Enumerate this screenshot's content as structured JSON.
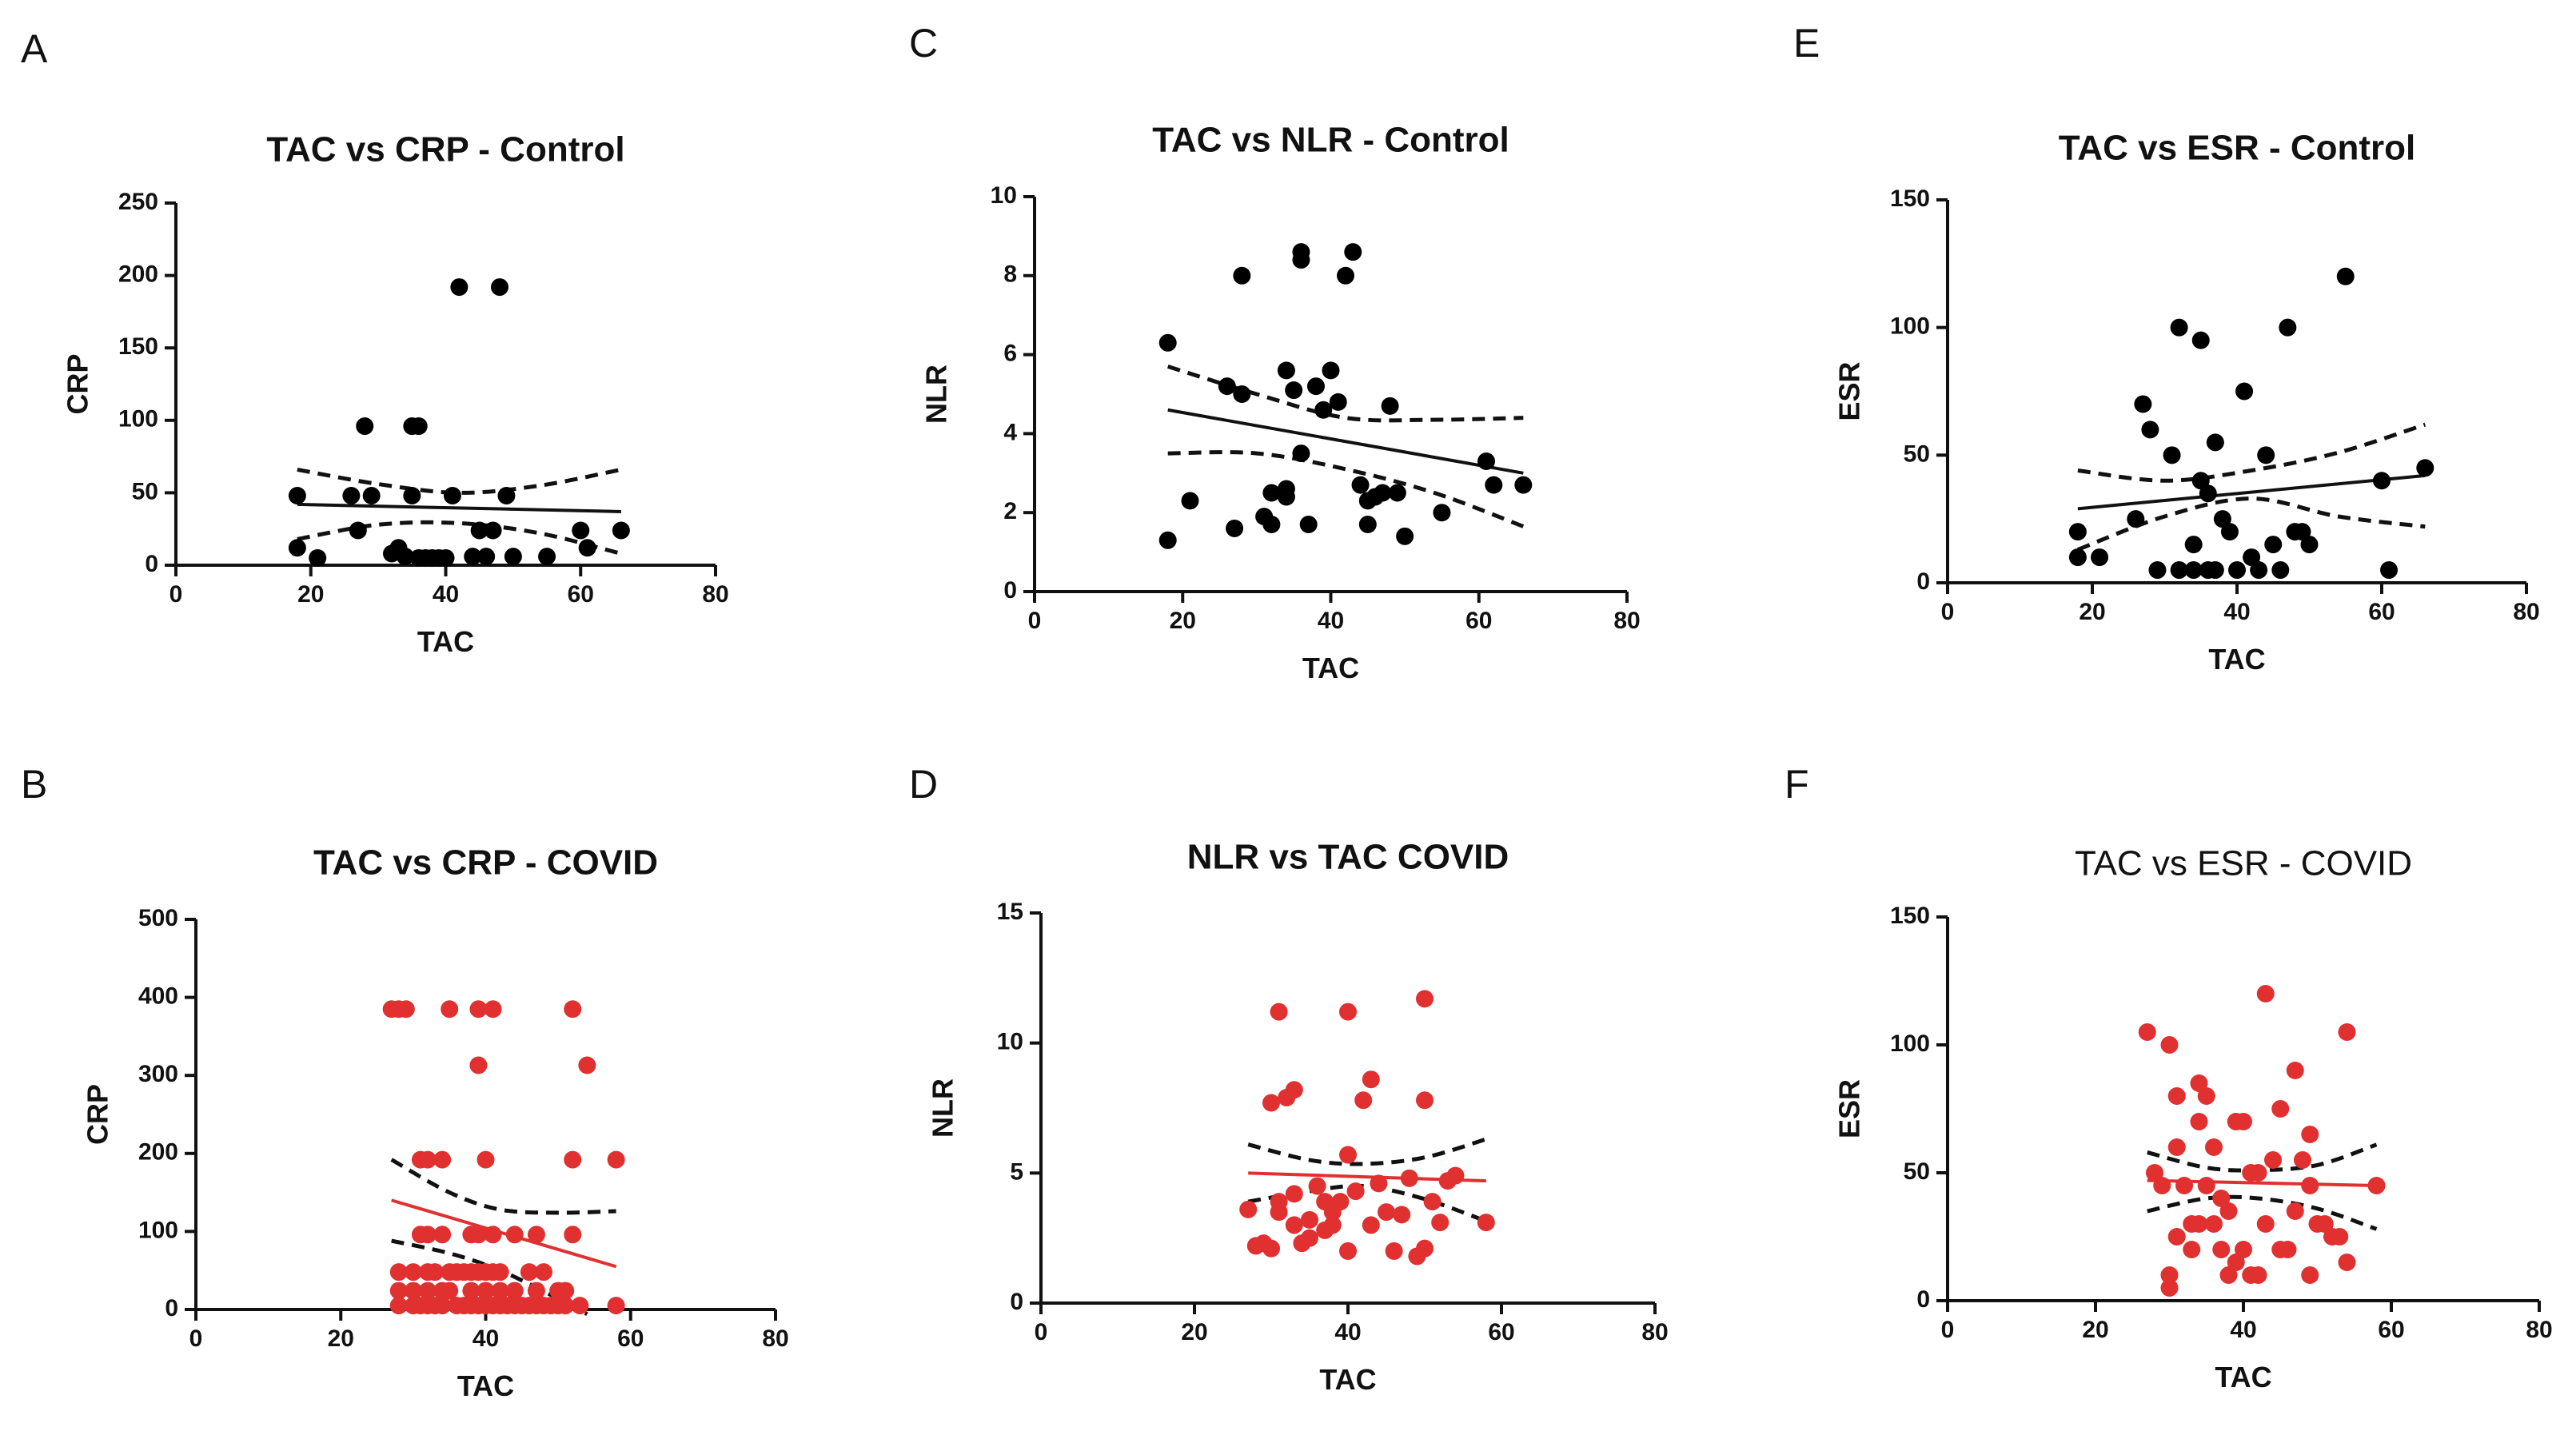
{
  "chart_data": [
    {
      "panel": "A",
      "type": "scatter",
      "title": "TAC vs CRP - Control",
      "title_bold": true,
      "xlabel": "TAC",
      "ylabel": "CRP",
      "xlim": [
        0,
        80
      ],
      "ylim": [
        0,
        250
      ],
      "xticks": [
        0,
        20,
        40,
        60,
        80
      ],
      "yticks": [
        0,
        50,
        100,
        150,
        200,
        250
      ],
      "color": "#000000",
      "points": [
        [
          18,
          48
        ],
        [
          18,
          12
        ],
        [
          21,
          5
        ],
        [
          26,
          48
        ],
        [
          27,
          24
        ],
        [
          28,
          96
        ],
        [
          29,
          48
        ],
        [
          32,
          8
        ],
        [
          33,
          12
        ],
        [
          34,
          6
        ],
        [
          35,
          48
        ],
        [
          35,
          96
        ],
        [
          36,
          96
        ],
        [
          36,
          5
        ],
        [
          37,
          5
        ],
        [
          38,
          5
        ],
        [
          39,
          5
        ],
        [
          40,
          5
        ],
        [
          41,
          48
        ],
        [
          42,
          192
        ],
        [
          44,
          6
        ],
        [
          45,
          24
        ],
        [
          46,
          6
        ],
        [
          47,
          24
        ],
        [
          48,
          192
        ],
        [
          49,
          48
        ],
        [
          50,
          6
        ],
        [
          55,
          6
        ],
        [
          60,
          24
        ],
        [
          61,
          12
        ],
        [
          66,
          24
        ]
      ],
      "fit": [
        [
          18,
          42
        ],
        [
          66,
          37
        ]
      ],
      "ci_upper": [
        [
          18,
          66
        ],
        [
          30,
          56
        ],
        [
          42,
          50
        ],
        [
          54,
          55
        ],
        [
          66,
          66
        ]
      ],
      "ci_lower": [
        [
          18,
          18
        ],
        [
          30,
          28
        ],
        [
          42,
          29
        ],
        [
          54,
          22
        ],
        [
          66,
          8
        ]
      ]
    },
    {
      "panel": "B",
      "type": "scatter",
      "title": "TAC vs CRP - COVID",
      "title_bold": true,
      "xlabel": "TAC",
      "ylabel": "CRP",
      "xlim": [
        0,
        80
      ],
      "ylim": [
        0,
        500
      ],
      "xticks": [
        0,
        20,
        40,
        60,
        80
      ],
      "yticks": [
        0,
        100,
        200,
        300,
        400,
        500
      ],
      "color": "#E03030",
      "points": [
        [
          27,
          385
        ],
        [
          28,
          385
        ],
        [
          29,
          385
        ],
        [
          35,
          385
        ],
        [
          39,
          385
        ],
        [
          41,
          385
        ],
        [
          52,
          385
        ],
        [
          54,
          313
        ],
        [
          39,
          313
        ],
        [
          31,
          192
        ],
        [
          32,
          192
        ],
        [
          34,
          192
        ],
        [
          40,
          192
        ],
        [
          52,
          192
        ],
        [
          58,
          192
        ],
        [
          31,
          96
        ],
        [
          32,
          96
        ],
        [
          34,
          96
        ],
        [
          38,
          96
        ],
        [
          39,
          96
        ],
        [
          41,
          96
        ],
        [
          44,
          96
        ],
        [
          47,
          96
        ],
        [
          52,
          96
        ],
        [
          28,
          48
        ],
        [
          30,
          48
        ],
        [
          32,
          48
        ],
        [
          33,
          48
        ],
        [
          35,
          48
        ],
        [
          36,
          48
        ],
        [
          37,
          48
        ],
        [
          38,
          48
        ],
        [
          39,
          48
        ],
        [
          40,
          48
        ],
        [
          41,
          48
        ],
        [
          42,
          48
        ],
        [
          46,
          48
        ],
        [
          48,
          48
        ],
        [
          28,
          24
        ],
        [
          30,
          24
        ],
        [
          32,
          24
        ],
        [
          34,
          24
        ],
        [
          35,
          24
        ],
        [
          38,
          24
        ],
        [
          40,
          24
        ],
        [
          42,
          24
        ],
        [
          44,
          24
        ],
        [
          47,
          24
        ],
        [
          50,
          24
        ],
        [
          51,
          24
        ],
        [
          28,
          5
        ],
        [
          30,
          5
        ],
        [
          31,
          5
        ],
        [
          32,
          5
        ],
        [
          33,
          5
        ],
        [
          34,
          5
        ],
        [
          36,
          5
        ],
        [
          37,
          5
        ],
        [
          38,
          5
        ],
        [
          39,
          5
        ],
        [
          40,
          5
        ],
        [
          41,
          5
        ],
        [
          42,
          5
        ],
        [
          43,
          5
        ],
        [
          44,
          5
        ],
        [
          45,
          5
        ],
        [
          46,
          5
        ],
        [
          47,
          5
        ],
        [
          48,
          5
        ],
        [
          49,
          5
        ],
        [
          50,
          5
        ],
        [
          51,
          5
        ],
        [
          53,
          5
        ],
        [
          58,
          5
        ]
      ],
      "fit": [
        [
          27,
          140
        ],
        [
          58,
          55
        ]
      ],
      "ci_upper": [
        [
          27,
          192
        ],
        [
          35,
          150
        ],
        [
          42,
          128
        ],
        [
          50,
          124
        ],
        [
          58,
          126
        ]
      ],
      "ci_lower": [
        [
          27,
          88
        ],
        [
          35,
          72
        ],
        [
          42,
          50
        ],
        [
          50,
          14
        ],
        [
          54,
          -6
        ]
      ]
    },
    {
      "panel": "C",
      "type": "scatter",
      "title": "TAC vs NLR - Control",
      "title_bold": true,
      "xlabel": "TAC",
      "ylabel": "NLR",
      "xlim": [
        0,
        80
      ],
      "ylim": [
        0,
        10
      ],
      "xticks": [
        0,
        20,
        40,
        60,
        80
      ],
      "yticks": [
        0,
        2,
        4,
        6,
        8,
        10
      ],
      "color": "#000000",
      "points": [
        [
          18,
          6.3
        ],
        [
          18,
          1.3
        ],
        [
          21,
          2.3
        ],
        [
          26,
          5.2
        ],
        [
          27,
          1.6
        ],
        [
          28,
          5.0
        ],
        [
          28,
          8.0
        ],
        [
          31,
          1.9
        ],
        [
          32,
          2.5
        ],
        [
          32,
          1.7
        ],
        [
          34,
          2.6
        ],
        [
          34,
          2.4
        ],
        [
          34,
          5.6
        ],
        [
          35,
          5.1
        ],
        [
          36,
          8.6
        ],
        [
          36,
          8.4
        ],
        [
          36,
          3.5
        ],
        [
          37,
          1.7
        ],
        [
          38,
          5.2
        ],
        [
          39,
          4.6
        ],
        [
          40,
          5.6
        ],
        [
          41,
          4.8
        ],
        [
          42,
          8.0
        ],
        [
          43,
          8.6
        ],
        [
          44,
          2.7
        ],
        [
          45,
          2.3
        ],
        [
          45,
          1.7
        ],
        [
          46,
          2.4
        ],
        [
          47,
          2.5
        ],
        [
          48,
          4.7
        ],
        [
          49,
          2.5
        ],
        [
          50,
          1.4
        ],
        [
          55,
          2.0
        ],
        [
          61,
          3.3
        ],
        [
          62,
          2.7
        ],
        [
          66,
          2.7
        ]
      ],
      "fit": [
        [
          18,
          4.6
        ],
        [
          66,
          3.0
        ]
      ],
      "ci_upper": [
        [
          18,
          5.7
        ],
        [
          30,
          5.0
        ],
        [
          42,
          4.4
        ],
        [
          54,
          4.35
        ],
        [
          66,
          4.4
        ]
      ],
      "ci_lower": [
        [
          18,
          3.5
        ],
        [
          30,
          3.5
        ],
        [
          42,
          3.1
        ],
        [
          54,
          2.5
        ],
        [
          66,
          1.65
        ]
      ]
    },
    {
      "panel": "D",
      "type": "scatter",
      "title": "NLR vs TAC COVID",
      "title_bold": true,
      "xlabel": "TAC",
      "ylabel": "NLR",
      "xlim": [
        0,
        80
      ],
      "ylim": [
        0,
        15
      ],
      "xticks": [
        0,
        20,
        40,
        60,
        80
      ],
      "yticks": [
        0,
        5,
        10,
        15
      ],
      "color": "#E03030",
      "points": [
        [
          27,
          3.6
        ],
        [
          28,
          2.2
        ],
        [
          29,
          2.3
        ],
        [
          30,
          7.7
        ],
        [
          30,
          2.1
        ],
        [
          31,
          11.2
        ],
        [
          31,
          3.9
        ],
        [
          31,
          3.5
        ],
        [
          32,
          7.9
        ],
        [
          33,
          8.2
        ],
        [
          33,
          4.2
        ],
        [
          33,
          3.0
        ],
        [
          34,
          2.3
        ],
        [
          35,
          3.2
        ],
        [
          35,
          2.5
        ],
        [
          36,
          4.5
        ],
        [
          37,
          3.9
        ],
        [
          37,
          2.8
        ],
        [
          38,
          3.5
        ],
        [
          38,
          3.0
        ],
        [
          39,
          3.9
        ],
        [
          40,
          11.2
        ],
        [
          40,
          5.7
        ],
        [
          40,
          2.0
        ],
        [
          41,
          4.3
        ],
        [
          42,
          7.8
        ],
        [
          43,
          8.6
        ],
        [
          43,
          3.0
        ],
        [
          44,
          4.6
        ],
        [
          45,
          3.5
        ],
        [
          46,
          2.0
        ],
        [
          47,
          3.4
        ],
        [
          48,
          4.8
        ],
        [
          49,
          1.8
        ],
        [
          50,
          11.7
        ],
        [
          50,
          7.8
        ],
        [
          50,
          2.1
        ],
        [
          51,
          3.9
        ],
        [
          52,
          3.1
        ],
        [
          53,
          4.7
        ],
        [
          54,
          4.9
        ],
        [
          58,
          3.1
        ]
      ],
      "fit": [
        [
          27,
          5.0
        ],
        [
          58,
          4.7
        ]
      ],
      "ci_upper": [
        [
          27,
          6.1
        ],
        [
          35,
          5.5
        ],
        [
          42,
          5.35
        ],
        [
          50,
          5.6
        ],
        [
          58,
          6.3
        ]
      ],
      "ci_lower": [
        [
          27,
          3.9
        ],
        [
          35,
          4.3
        ],
        [
          42,
          4.5
        ],
        [
          50,
          4.0
        ],
        [
          58,
          3.15
        ]
      ]
    },
    {
      "panel": "E",
      "type": "scatter",
      "title": "TAC vs ESR - Control",
      "title_bold": true,
      "xlabel": "TAC",
      "ylabel": "ESR",
      "xlim": [
        0,
        80
      ],
      "ylim": [
        0,
        150
      ],
      "xticks": [
        0,
        20,
        40,
        60,
        80
      ],
      "yticks": [
        0,
        50,
        100,
        150
      ],
      "color": "#000000",
      "points": [
        [
          18,
          20
        ],
        [
          18,
          10
        ],
        [
          21,
          10
        ],
        [
          26,
          25
        ],
        [
          27,
          70
        ],
        [
          28,
          60
        ],
        [
          29,
          5
        ],
        [
          31,
          50
        ],
        [
          32,
          100
        ],
        [
          32,
          5
        ],
        [
          34,
          15
        ],
        [
          34,
          5
        ],
        [
          35,
          40
        ],
        [
          35,
          95
        ],
        [
          36,
          5
        ],
        [
          36,
          35
        ],
        [
          37,
          55
        ],
        [
          37,
          5
        ],
        [
          38,
          25
        ],
        [
          39,
          20
        ],
        [
          40,
          5
        ],
        [
          41,
          75
        ],
        [
          42,
          10
        ],
        [
          43,
          5
        ],
        [
          44,
          50
        ],
        [
          45,
          15
        ],
        [
          46,
          5
        ],
        [
          47,
          100
        ],
        [
          48,
          20
        ],
        [
          49,
          20
        ],
        [
          50,
          15
        ],
        [
          55,
          120
        ],
        [
          60,
          40
        ],
        [
          61,
          5
        ],
        [
          66,
          45
        ]
      ],
      "fit": [
        [
          18,
          29
        ],
        [
          66,
          42
        ]
      ],
      "ci_upper": [
        [
          18,
          44
        ],
        [
          30,
          40
        ],
        [
          42,
          44
        ],
        [
          54,
          51
        ],
        [
          66,
          62
        ]
      ],
      "ci_lower": [
        [
          18,
          13
        ],
        [
          30,
          26
        ],
        [
          42,
          33
        ],
        [
          54,
          26
        ],
        [
          66,
          22
        ]
      ]
    },
    {
      "panel": "F",
      "type": "scatter",
      "title": "TAC vs ESR - COVID",
      "title_bold": false,
      "xlabel": "TAC",
      "ylabel": "ESR",
      "xlim": [
        0,
        80
      ],
      "ylim": [
        0,
        150
      ],
      "xticks": [
        0,
        20,
        40,
        60,
        80
      ],
      "yticks": [
        0,
        50,
        100,
        150
      ],
      "color": "#E03030",
      "points": [
        [
          27,
          105
        ],
        [
          28,
          50
        ],
        [
          29,
          45
        ],
        [
          30,
          5
        ],
        [
          30,
          100
        ],
        [
          30,
          10
        ],
        [
          31,
          25
        ],
        [
          31,
          80
        ],
        [
          31,
          60
        ],
        [
          32,
          45
        ],
        [
          33,
          30
        ],
        [
          33,
          20
        ],
        [
          34,
          85
        ],
        [
          34,
          70
        ],
        [
          34,
          30
        ],
        [
          35,
          80
        ],
        [
          35,
          45
        ],
        [
          36,
          60
        ],
        [
          36,
          30
        ],
        [
          37,
          40
        ],
        [
          37,
          20
        ],
        [
          38,
          35
        ],
        [
          38,
          10
        ],
        [
          39,
          70
        ],
        [
          39,
          15
        ],
        [
          40,
          70
        ],
        [
          40,
          20
        ],
        [
          41,
          10
        ],
        [
          41,
          50
        ],
        [
          42,
          10
        ],
        [
          42,
          50
        ],
        [
          43,
          120
        ],
        [
          43,
          30
        ],
        [
          44,
          55
        ],
        [
          45,
          20
        ],
        [
          45,
          75
        ],
        [
          46,
          20
        ],
        [
          47,
          90
        ],
        [
          47,
          35
        ],
        [
          48,
          55
        ],
        [
          49,
          45
        ],
        [
          49,
          65
        ],
        [
          49,
          10
        ],
        [
          50,
          30
        ],
        [
          51,
          30
        ],
        [
          52,
          25
        ],
        [
          53,
          25
        ],
        [
          54,
          15
        ],
        [
          54,
          105
        ],
        [
          58,
          45
        ]
      ],
      "fit": [
        [
          27,
          47
        ],
        [
          58,
          45
        ]
      ],
      "ci_upper": [
        [
          27,
          58
        ],
        [
          35,
          52
        ],
        [
          42,
          51
        ],
        [
          50,
          53
        ],
        [
          58,
          61
        ]
      ],
      "ci_lower": [
        [
          27,
          35
        ],
        [
          35,
          40
        ],
        [
          42,
          40
        ],
        [
          50,
          36
        ],
        [
          58,
          28
        ]
      ]
    }
  ]
}
